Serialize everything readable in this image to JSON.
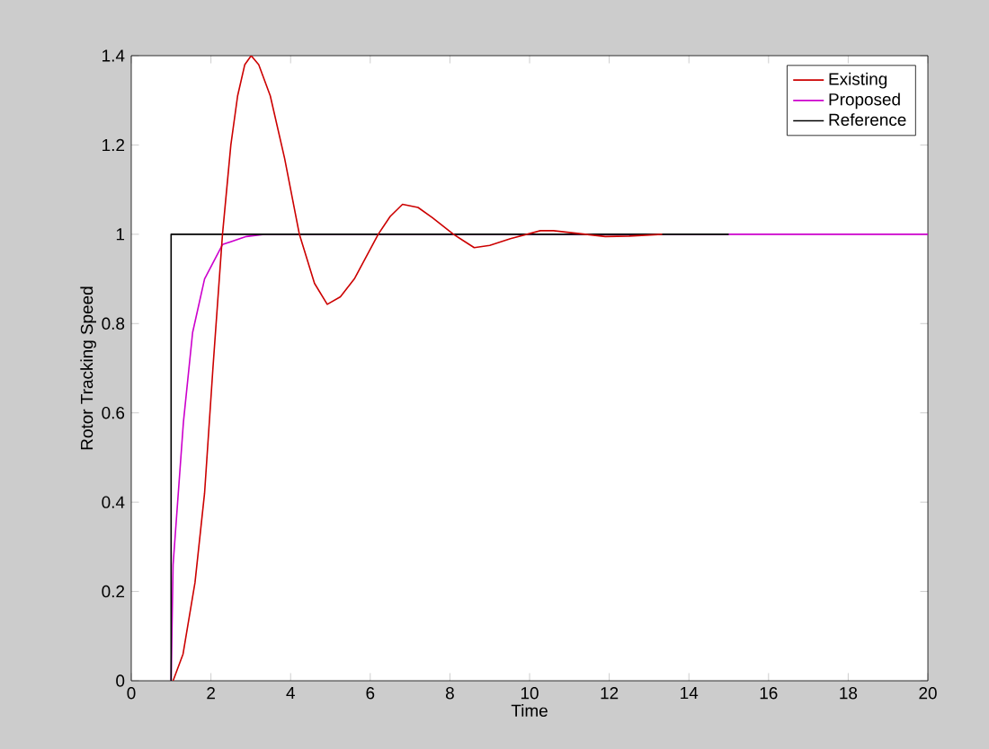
{
  "chart_data": {
    "type": "line",
    "xlabel": "Time",
    "ylabel": "Rotor Tracking Speed",
    "xlim": [
      0,
      20
    ],
    "ylim": [
      0,
      1.4
    ],
    "xticks": [
      0,
      2,
      4,
      6,
      8,
      10,
      12,
      14,
      16,
      18,
      20
    ],
    "yticks": [
      0,
      0.2,
      0.4,
      0.6,
      0.8,
      1,
      1.2,
      1.4
    ],
    "legend": "top right",
    "grid": false,
    "series": [
      {
        "name": "Existing",
        "color": "#cc0000",
        "x": [
          1.05,
          1.3,
          1.6,
          1.84,
          2.05,
          2.29,
          2.5,
          2.67,
          2.85,
          3.01,
          3.2,
          3.49,
          3.85,
          4.22,
          4.6,
          4.92,
          5.25,
          5.6,
          6.2,
          6.5,
          6.81,
          7.2,
          7.56,
          8.09,
          8.61,
          9.0,
          9.52,
          10.27,
          10.6,
          11.4,
          11.9,
          12.5,
          13.33
        ],
        "values": [
          0,
          0.06,
          0.22,
          0.42,
          0.7,
          1.0,
          1.2,
          1.31,
          1.38,
          1.4,
          1.38,
          1.31,
          1.17,
          1.0,
          0.89,
          0.843,
          0.86,
          0.9,
          1.0,
          1.04,
          1.067,
          1.06,
          1.037,
          1.0,
          0.97,
          0.975,
          0.99,
          1.008,
          1.008,
          1.0,
          0.995,
          0.996,
          1.0
        ]
      },
      {
        "name": "Proposed",
        "color": "#cc00cc",
        "x": [
          1,
          1.05,
          1.31,
          1.54,
          1.84,
          2.29,
          2.89,
          3.34,
          20
        ],
        "values": [
          0,
          0.26,
          0.58,
          0.78,
          0.9,
          0.977,
          0.995,
          1.0,
          1.0
        ]
      },
      {
        "name": "Reference",
        "color": "#000000",
        "x": [
          1,
          1,
          15
        ],
        "values": [
          0,
          1,
          1
        ]
      }
    ]
  }
}
